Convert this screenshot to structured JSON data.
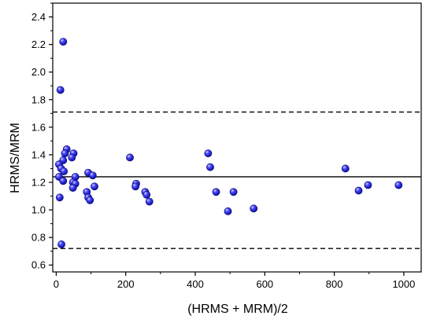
{
  "chart_data": {
    "type": "scatter",
    "xlabel": "(HRMS + MRM)/2",
    "ylabel": "HRMS/MRM",
    "xlim": [
      -10,
      1050
    ],
    "ylim": [
      0.55,
      2.5
    ],
    "x_ticks": [
      0,
      200,
      400,
      600,
      800,
      1000
    ],
    "y_ticks": [
      0.6,
      0.8,
      1.0,
      1.2,
      1.4,
      1.6,
      1.8,
      2.0,
      2.2,
      2.4
    ],
    "x_tick_labels": [
      "0",
      "200",
      "400",
      "600",
      "800",
      "1000"
    ],
    "y_tick_labels": [
      "0.6",
      "0.8",
      "1.0",
      "1.2",
      "1.4",
      "1.6",
      "1.8",
      "2.0",
      "2.2",
      "2.4"
    ],
    "grid": false,
    "reference_lines": [
      {
        "y": 1.24,
        "style": "solid"
      },
      {
        "y": 1.71,
        "style": "dashed"
      },
      {
        "y": 0.72,
        "style": "dashed"
      }
    ],
    "point_color": "#2020e8",
    "points": [
      {
        "x": 20,
        "y": 2.22
      },
      {
        "x": 12,
        "y": 1.87
      },
      {
        "x": 30,
        "y": 1.44
      },
      {
        "x": 25,
        "y": 1.41
      },
      {
        "x": 50,
        "y": 1.41
      },
      {
        "x": 45,
        "y": 1.38
      },
      {
        "x": 20,
        "y": 1.36
      },
      {
        "x": 8,
        "y": 1.33
      },
      {
        "x": 14,
        "y": 1.3
      },
      {
        "x": 22,
        "y": 1.28
      },
      {
        "x": 92,
        "y": 1.27
      },
      {
        "x": 105,
        "y": 1.25
      },
      {
        "x": 8,
        "y": 1.24
      },
      {
        "x": 55,
        "y": 1.24
      },
      {
        "x": 20,
        "y": 1.21
      },
      {
        "x": 48,
        "y": 1.2
      },
      {
        "x": 55,
        "y": 1.19
      },
      {
        "x": 110,
        "y": 1.17
      },
      {
        "x": 48,
        "y": 1.16
      },
      {
        "x": 88,
        "y": 1.13
      },
      {
        "x": 10,
        "y": 1.09
      },
      {
        "x": 92,
        "y": 1.09
      },
      {
        "x": 97,
        "y": 1.07
      },
      {
        "x": 15,
        "y": 0.75
      },
      {
        "x": 212,
        "y": 1.38
      },
      {
        "x": 230,
        "y": 1.19
      },
      {
        "x": 228,
        "y": 1.17
      },
      {
        "x": 256,
        "y": 1.13
      },
      {
        "x": 260,
        "y": 1.11
      },
      {
        "x": 268,
        "y": 1.06
      },
      {
        "x": 437,
        "y": 1.41
      },
      {
        "x": 443,
        "y": 1.31
      },
      {
        "x": 460,
        "y": 1.13
      },
      {
        "x": 494,
        "y": 0.99
      },
      {
        "x": 510,
        "y": 1.13
      },
      {
        "x": 568,
        "y": 1.01
      },
      {
        "x": 832,
        "y": 1.3
      },
      {
        "x": 870,
        "y": 1.14
      },
      {
        "x": 897,
        "y": 1.18
      },
      {
        "x": 985,
        "y": 1.18
      }
    ]
  }
}
